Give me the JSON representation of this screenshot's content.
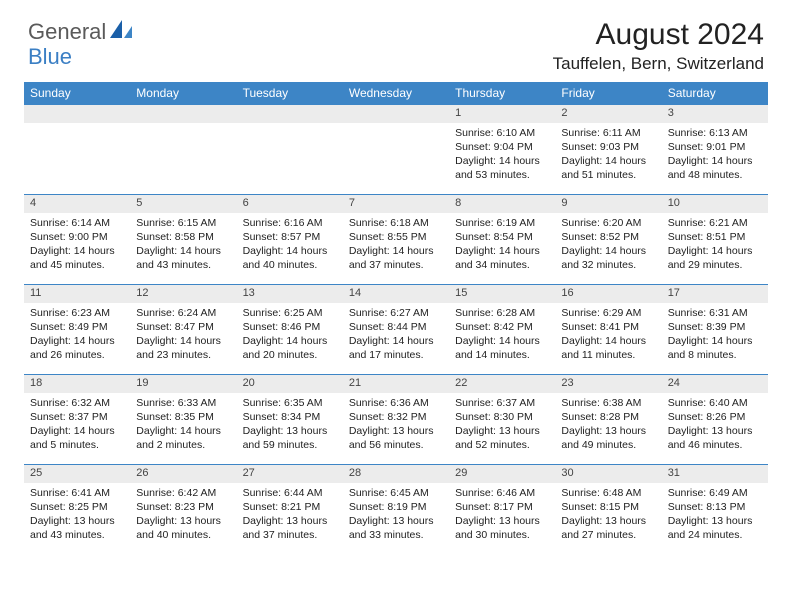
{
  "logo": {
    "part1": "General",
    "part2": "Blue"
  },
  "title": "August 2024",
  "location": "Tauffelen, Bern, Switzerland",
  "colors": {
    "header_bg": "#3d85c6",
    "header_fg": "#ffffff",
    "daynum_bg": "#ececec",
    "border": "#3d85c6",
    "logo_gray": "#5a5a5a",
    "logo_blue": "#3b7fc4"
  },
  "weekdays": [
    "Sunday",
    "Monday",
    "Tuesday",
    "Wednesday",
    "Thursday",
    "Friday",
    "Saturday"
  ],
  "weeks": [
    [
      null,
      null,
      null,
      null,
      {
        "n": "1",
        "sr": "Sunrise: 6:10 AM",
        "ss": "Sunset: 9:04 PM",
        "dl": "Daylight: 14 hours and 53 minutes."
      },
      {
        "n": "2",
        "sr": "Sunrise: 6:11 AM",
        "ss": "Sunset: 9:03 PM",
        "dl": "Daylight: 14 hours and 51 minutes."
      },
      {
        "n": "3",
        "sr": "Sunrise: 6:13 AM",
        "ss": "Sunset: 9:01 PM",
        "dl": "Daylight: 14 hours and 48 minutes."
      }
    ],
    [
      {
        "n": "4",
        "sr": "Sunrise: 6:14 AM",
        "ss": "Sunset: 9:00 PM",
        "dl": "Daylight: 14 hours and 45 minutes."
      },
      {
        "n": "5",
        "sr": "Sunrise: 6:15 AM",
        "ss": "Sunset: 8:58 PM",
        "dl": "Daylight: 14 hours and 43 minutes."
      },
      {
        "n": "6",
        "sr": "Sunrise: 6:16 AM",
        "ss": "Sunset: 8:57 PM",
        "dl": "Daylight: 14 hours and 40 minutes."
      },
      {
        "n": "7",
        "sr": "Sunrise: 6:18 AM",
        "ss": "Sunset: 8:55 PM",
        "dl": "Daylight: 14 hours and 37 minutes."
      },
      {
        "n": "8",
        "sr": "Sunrise: 6:19 AM",
        "ss": "Sunset: 8:54 PM",
        "dl": "Daylight: 14 hours and 34 minutes."
      },
      {
        "n": "9",
        "sr": "Sunrise: 6:20 AM",
        "ss": "Sunset: 8:52 PM",
        "dl": "Daylight: 14 hours and 32 minutes."
      },
      {
        "n": "10",
        "sr": "Sunrise: 6:21 AM",
        "ss": "Sunset: 8:51 PM",
        "dl": "Daylight: 14 hours and 29 minutes."
      }
    ],
    [
      {
        "n": "11",
        "sr": "Sunrise: 6:23 AM",
        "ss": "Sunset: 8:49 PM",
        "dl": "Daylight: 14 hours and 26 minutes."
      },
      {
        "n": "12",
        "sr": "Sunrise: 6:24 AM",
        "ss": "Sunset: 8:47 PM",
        "dl": "Daylight: 14 hours and 23 minutes."
      },
      {
        "n": "13",
        "sr": "Sunrise: 6:25 AM",
        "ss": "Sunset: 8:46 PM",
        "dl": "Daylight: 14 hours and 20 minutes."
      },
      {
        "n": "14",
        "sr": "Sunrise: 6:27 AM",
        "ss": "Sunset: 8:44 PM",
        "dl": "Daylight: 14 hours and 17 minutes."
      },
      {
        "n": "15",
        "sr": "Sunrise: 6:28 AM",
        "ss": "Sunset: 8:42 PM",
        "dl": "Daylight: 14 hours and 14 minutes."
      },
      {
        "n": "16",
        "sr": "Sunrise: 6:29 AM",
        "ss": "Sunset: 8:41 PM",
        "dl": "Daylight: 14 hours and 11 minutes."
      },
      {
        "n": "17",
        "sr": "Sunrise: 6:31 AM",
        "ss": "Sunset: 8:39 PM",
        "dl": "Daylight: 14 hours and 8 minutes."
      }
    ],
    [
      {
        "n": "18",
        "sr": "Sunrise: 6:32 AM",
        "ss": "Sunset: 8:37 PM",
        "dl": "Daylight: 14 hours and 5 minutes."
      },
      {
        "n": "19",
        "sr": "Sunrise: 6:33 AM",
        "ss": "Sunset: 8:35 PM",
        "dl": "Daylight: 14 hours and 2 minutes."
      },
      {
        "n": "20",
        "sr": "Sunrise: 6:35 AM",
        "ss": "Sunset: 8:34 PM",
        "dl": "Daylight: 13 hours and 59 minutes."
      },
      {
        "n": "21",
        "sr": "Sunrise: 6:36 AM",
        "ss": "Sunset: 8:32 PM",
        "dl": "Daylight: 13 hours and 56 minutes."
      },
      {
        "n": "22",
        "sr": "Sunrise: 6:37 AM",
        "ss": "Sunset: 8:30 PM",
        "dl": "Daylight: 13 hours and 52 minutes."
      },
      {
        "n": "23",
        "sr": "Sunrise: 6:38 AM",
        "ss": "Sunset: 8:28 PM",
        "dl": "Daylight: 13 hours and 49 minutes."
      },
      {
        "n": "24",
        "sr": "Sunrise: 6:40 AM",
        "ss": "Sunset: 8:26 PM",
        "dl": "Daylight: 13 hours and 46 minutes."
      }
    ],
    [
      {
        "n": "25",
        "sr": "Sunrise: 6:41 AM",
        "ss": "Sunset: 8:25 PM",
        "dl": "Daylight: 13 hours and 43 minutes."
      },
      {
        "n": "26",
        "sr": "Sunrise: 6:42 AM",
        "ss": "Sunset: 8:23 PM",
        "dl": "Daylight: 13 hours and 40 minutes."
      },
      {
        "n": "27",
        "sr": "Sunrise: 6:44 AM",
        "ss": "Sunset: 8:21 PM",
        "dl": "Daylight: 13 hours and 37 minutes."
      },
      {
        "n": "28",
        "sr": "Sunrise: 6:45 AM",
        "ss": "Sunset: 8:19 PM",
        "dl": "Daylight: 13 hours and 33 minutes."
      },
      {
        "n": "29",
        "sr": "Sunrise: 6:46 AM",
        "ss": "Sunset: 8:17 PM",
        "dl": "Daylight: 13 hours and 30 minutes."
      },
      {
        "n": "30",
        "sr": "Sunrise: 6:48 AM",
        "ss": "Sunset: 8:15 PM",
        "dl": "Daylight: 13 hours and 27 minutes."
      },
      {
        "n": "31",
        "sr": "Sunrise: 6:49 AM",
        "ss": "Sunset: 8:13 PM",
        "dl": "Daylight: 13 hours and 24 minutes."
      }
    ]
  ]
}
